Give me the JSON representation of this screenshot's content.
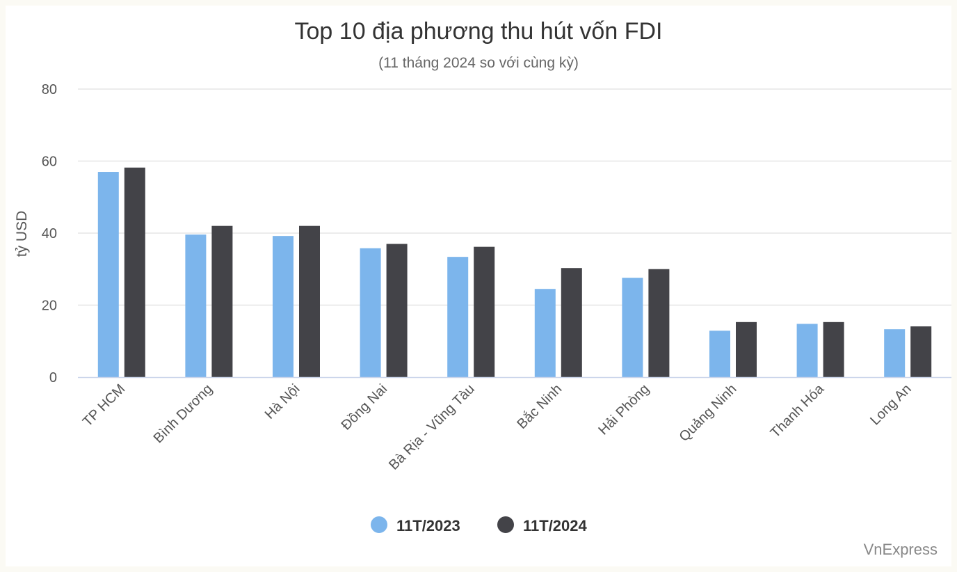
{
  "chart_data": {
    "type": "bar",
    "title": "Top 10 địa phương thu hút vốn FDI",
    "subtitle": "(11 tháng 2024 so với cùng kỳ)",
    "ylabel": "tỷ USD",
    "xlabel": "",
    "ylim": [
      0,
      80
    ],
    "yticks": [
      0,
      20,
      40,
      60,
      80
    ],
    "grid": true,
    "legend_position": "bottom-center",
    "categories": [
      "TP HCM",
      "Bình Dương",
      "Hà Nội",
      "Đồng Nai",
      "Bà Rịa - Vũng Tàu",
      "Bắc Ninh",
      "Hải Phòng",
      "Quảng Ninh",
      "Thanh Hóa",
      "Long An"
    ],
    "series": [
      {
        "name": "11T/2023",
        "color": "#7cb5ec",
        "values": [
          57,
          39.6,
          39.2,
          35.8,
          33.4,
          24.5,
          27.6,
          12.9,
          14.8,
          13.3
        ]
      },
      {
        "name": "11T/2024",
        "color": "#434348",
        "values": [
          58.2,
          42,
          42,
          37,
          36.2,
          30.3,
          30,
          15.3,
          15.3,
          14.1
        ]
      }
    ],
    "source": "VnExpress"
  }
}
